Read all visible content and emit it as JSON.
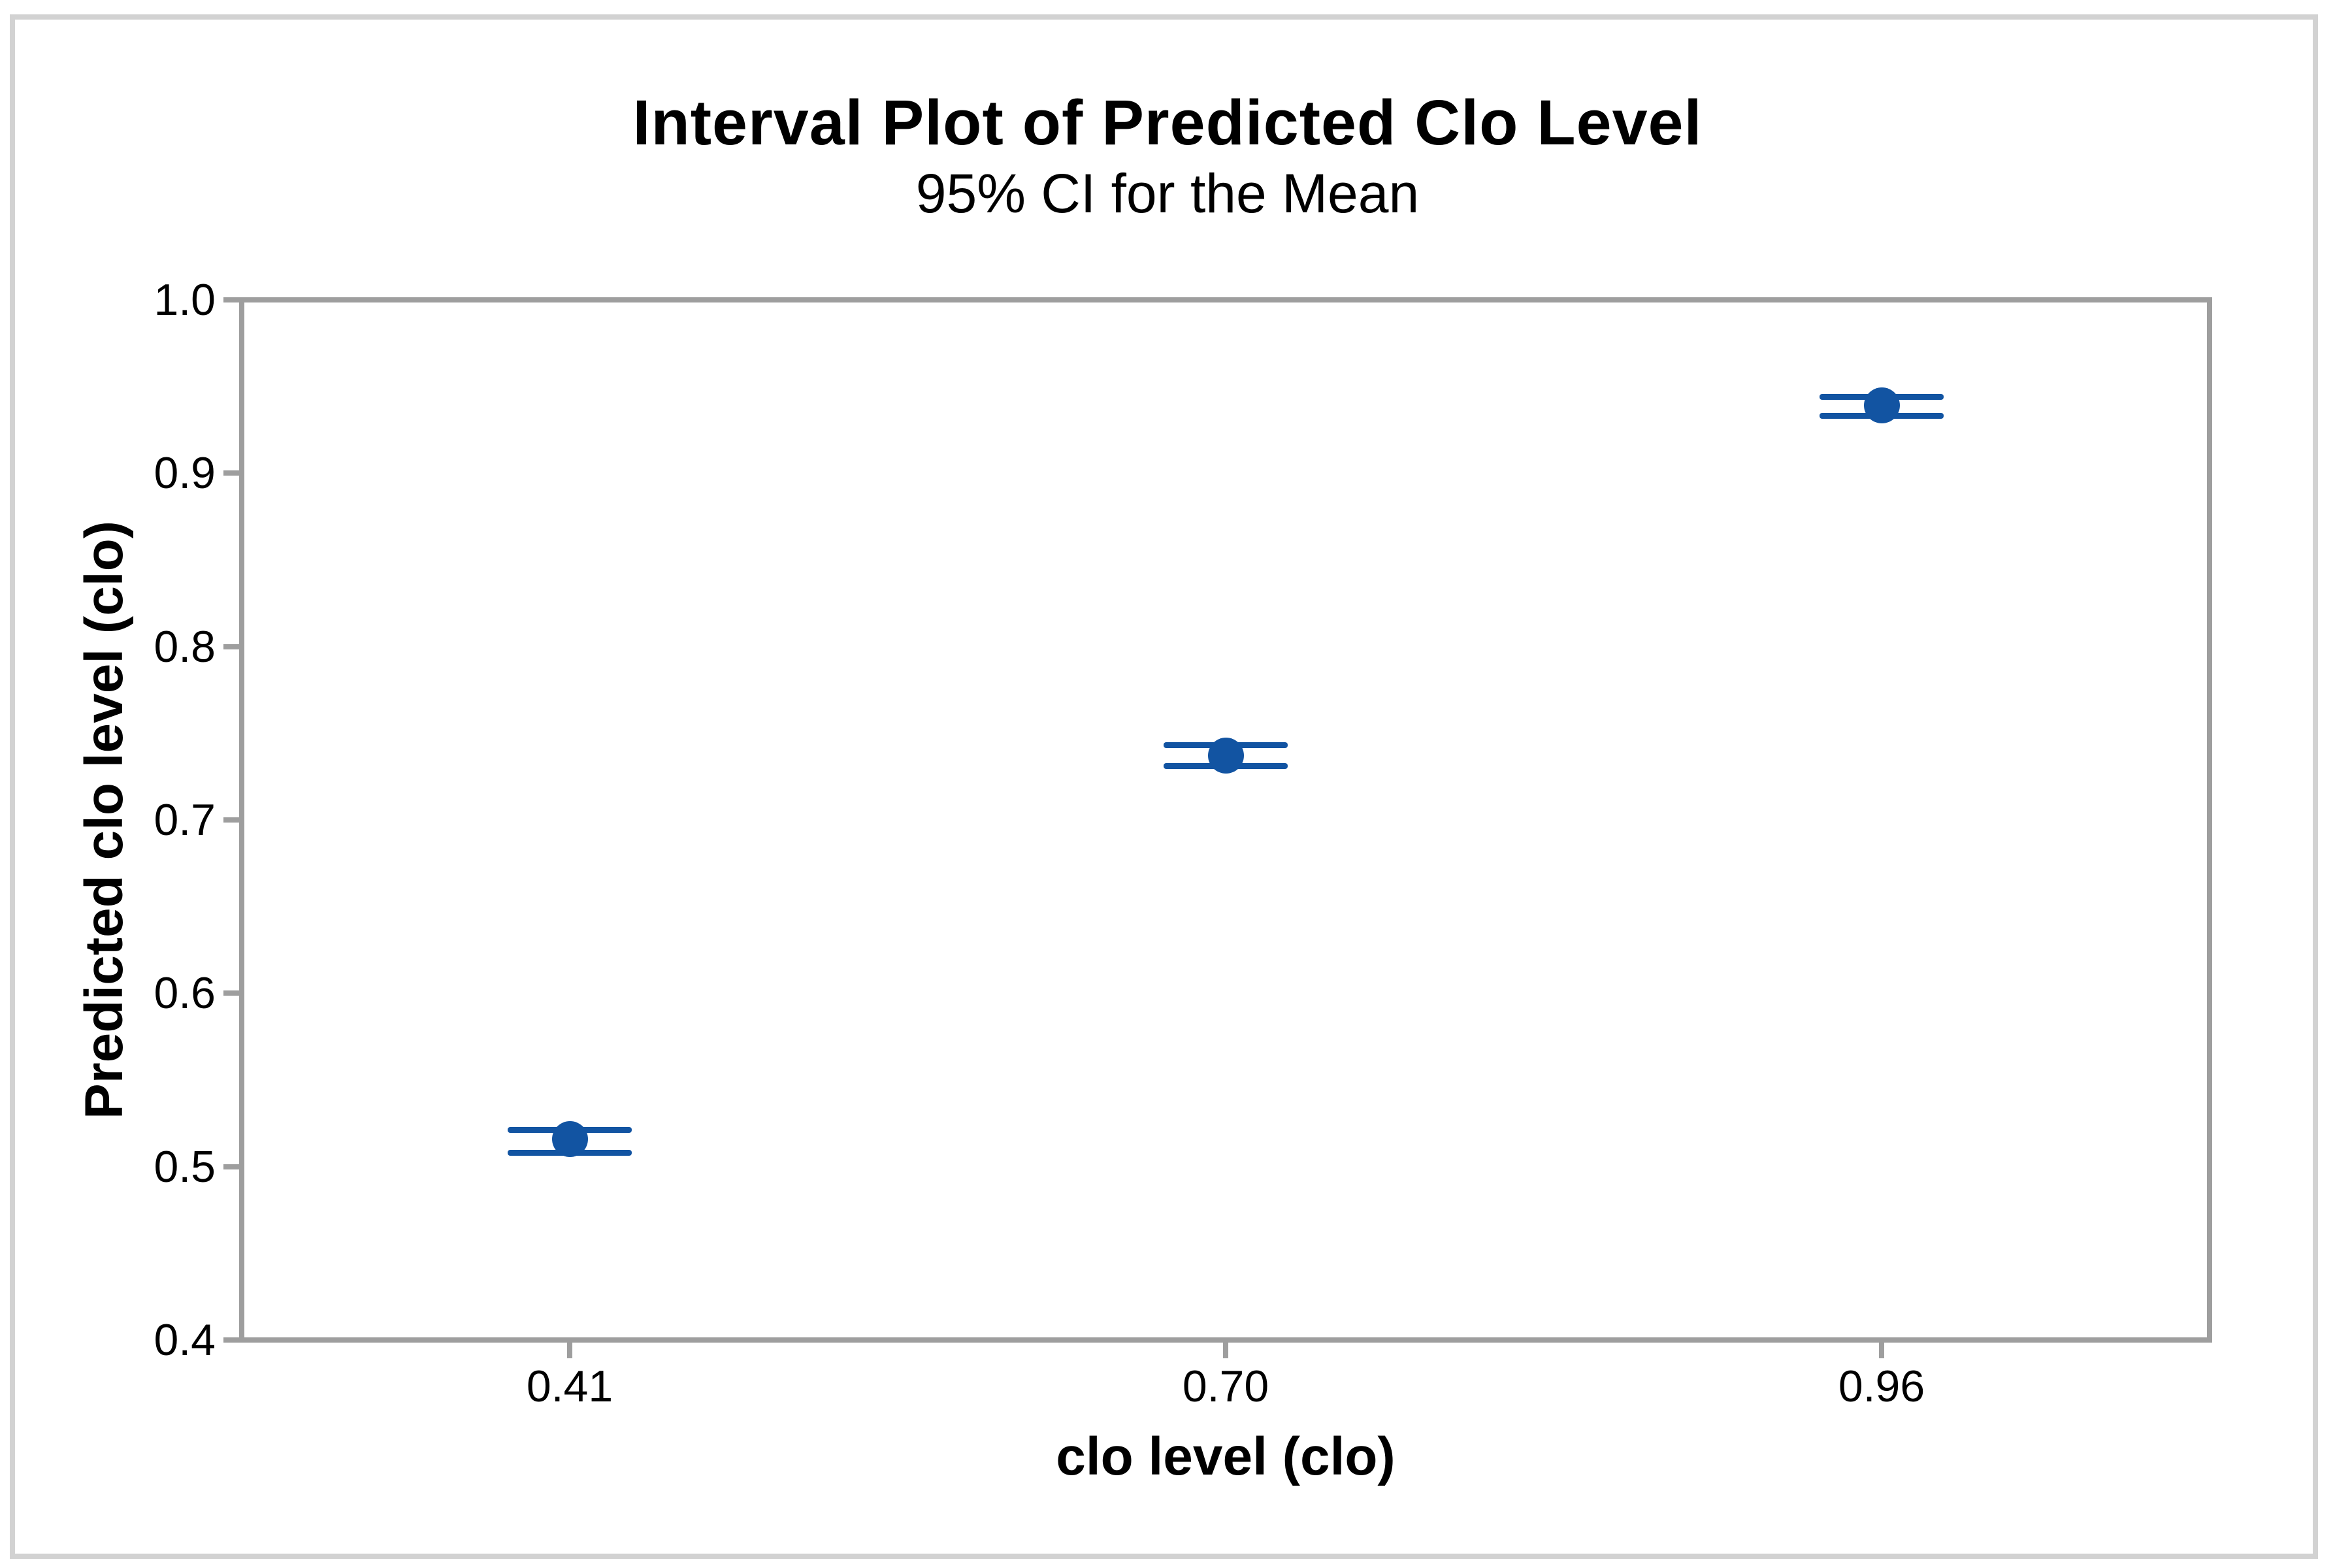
{
  "figure": {
    "background": "#ffffff",
    "border_color": "#d2d2d2"
  },
  "chart_data": {
    "type": "scatter",
    "variant": "interval-plot-95-ci-capped-error-bars",
    "title": "Interval Plot of Predicted Clo Level",
    "subtitle": "95% CI for the Mean",
    "xlabel": "clo level (clo)",
    "ylabel": "Predicted clo level (clo)",
    "categories": [
      "0.41",
      "0.70",
      "0.96"
    ],
    "series": [
      {
        "name": "Predicted clo level",
        "means": [
          0.516,
          0.737,
          0.939
        ],
        "ci_low": [
          0.508,
          0.731,
          0.933
        ],
        "ci_high": [
          0.521,
          0.743,
          0.944
        ]
      }
    ],
    "ylim": [
      0.4,
      1.0
    ],
    "y_ticks": [
      "1.0",
      "0.9",
      "0.8",
      "0.7",
      "0.6",
      "0.5",
      "0.4"
    ],
    "grid": false,
    "legend_position": "none",
    "marker_color": "#1254a2",
    "axis_color": "#9e9e9e",
    "text_color": "#000000"
  }
}
